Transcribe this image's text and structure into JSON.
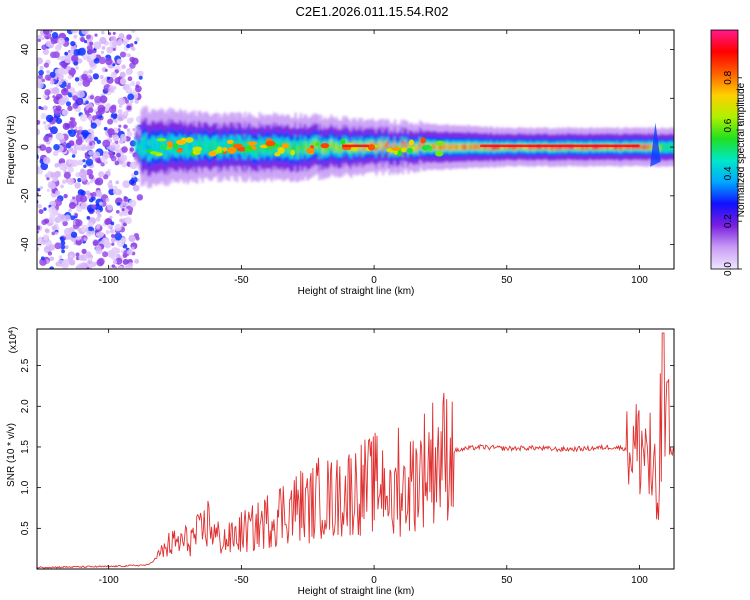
{
  "figure": {
    "title": "C2E1.2026.011.15.54.R02"
  },
  "chart_data": [
    {
      "type": "heatmap",
      "xlabel": "Height of straight line (km)",
      "ylabel": "Frequency (Hz)",
      "xlim": [
        -127,
        113
      ],
      "ylim": [
        -50,
        48
      ],
      "xticks": [
        -100,
        -50,
        0,
        50,
        100
      ],
      "yticks": [
        -40,
        -20,
        0,
        20,
        40
      ],
      "colorbar": {
        "label": "Normalized spectral amplitude",
        "range": [
          0,
          1
        ],
        "ticks": [
          "0.0",
          "0.2",
          "0.4",
          "0.6",
          "0.8"
        ],
        "colors": [
          "#f0e6ff",
          "#c89cf5",
          "#7a1fe0",
          "#1010ff",
          "#00a8ff",
          "#00e8c8",
          "#20e020",
          "#b0f000",
          "#ffd000",
          "#ff6000",
          "#ff0000",
          "#ff1a8c"
        ]
      },
      "band": {
        "center_hz": 0,
        "noise_region_km": [
          -127,
          -90
        ],
        "band_start_km": -90,
        "description_points": [
          {
            "x": -88,
            "halfwidth_hz": 6,
            "peak": 0.45
          },
          {
            "x": -60,
            "halfwidth_hz": 5,
            "peak": 0.55
          },
          {
            "x": -30,
            "halfwidth_hz": 5,
            "peak": 0.6
          },
          {
            "x": 0,
            "halfwidth_hz": 4,
            "peak": 0.85
          },
          {
            "x": 50,
            "halfwidth_hz": 3,
            "peak": 0.9
          },
          {
            "x": 100,
            "halfwidth_hz": 3,
            "peak": 0.95
          },
          {
            "x": 113,
            "halfwidth_hz": 3,
            "peak": 0.5
          }
        ]
      },
      "grid": false
    },
    {
      "type": "line",
      "xlabel": "Height of straight line (km)",
      "ylabel": "SNR (10 * v/v)",
      "multiplier_label": "(x10^4)",
      "xlim": [
        -127,
        113
      ],
      "ylim": [
        0,
        2.95
      ],
      "xticks": [
        -100,
        -50,
        0,
        50,
        100
      ],
      "yticks": [
        "0.5",
        "1.0",
        "1.5",
        "2.0",
        "2.5"
      ],
      "color": "#e03030",
      "series": [
        {
          "x": [
            -127,
            -100,
            -85,
            -80,
            -77,
            -70,
            -65,
            -62,
            -60,
            -55,
            -50,
            -45,
            -40,
            -35,
            -30,
            -28,
            -25,
            -20,
            -15,
            -10,
            -5,
            0,
            5,
            7,
            9,
            10,
            15,
            20,
            25,
            30,
            35,
            40,
            50,
            60,
            70,
            80,
            90,
            95,
            100,
            103,
            105,
            106,
            108,
            110,
            113
          ],
          "y": [
            0.02,
            0.03,
            0.05,
            0.2,
            0.3,
            0.35,
            0.45,
            0.6,
            0.4,
            0.35,
            0.45,
            0.5,
            0.6,
            0.7,
            0.75,
            0.8,
            0.75,
            0.9,
            0.85,
            0.95,
            1.0,
            1.05,
            1.1,
            0.6,
            1.3,
            0.9,
            1.1,
            1.3,
            1.4,
            1.45,
            1.48,
            1.5,
            1.48,
            1.49,
            1.47,
            1.48,
            1.5,
            1.48,
            1.5,
            1.5,
            1.0,
            0.5,
            1.6,
            1.45,
            1.45
          ]
        }
      ],
      "grid": false
    }
  ]
}
